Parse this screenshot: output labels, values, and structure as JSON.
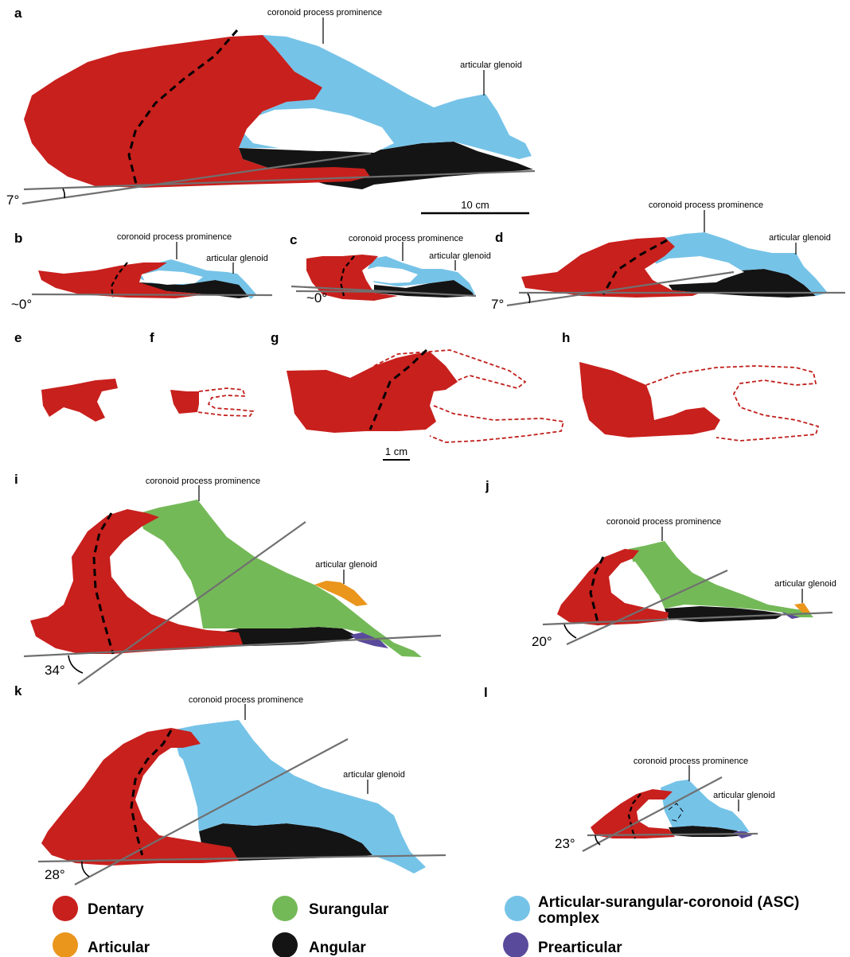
{
  "colors": {
    "dentary": "#c8201d",
    "surangular": "#74b958",
    "asc": "#76c3e8",
    "articular": "#ea951c",
    "angular": "#141414",
    "prearticular": "#5a4a9c",
    "reference_line": "#707070"
  },
  "annotations": {
    "coronoid": "coronoid process prominence",
    "glenoid": "articular glenoid"
  },
  "panels": {
    "a": {
      "label": "a",
      "angle": "7°"
    },
    "b": {
      "label": "b",
      "angle": "~0°"
    },
    "c": {
      "label": "c",
      "angle": "~0°"
    },
    "d": {
      "label": "d",
      "angle": "7°"
    },
    "e": {
      "label": "e"
    },
    "f": {
      "label": "f"
    },
    "g": {
      "label": "g"
    },
    "h": {
      "label": "h"
    },
    "i": {
      "label": "i",
      "angle": "34°"
    },
    "j": {
      "label": "j",
      "angle": "20°"
    },
    "k": {
      "label": "k",
      "angle": "28°"
    },
    "l": {
      "label": "l",
      "angle": "23°"
    }
  },
  "scale_bars": {
    "large": "10 cm",
    "small": "1 cm"
  },
  "legend": [
    {
      "label": "Dentary",
      "color": "#c8201d"
    },
    {
      "label": "Surangular",
      "color": "#74b958"
    },
    {
      "label": "Articular-surangular-coronoid (ASC)",
      "label_line2": "complex",
      "color": "#76c3e8"
    },
    {
      "label": "Articular",
      "color": "#ea951c"
    },
    {
      "label": "Angular",
      "color": "#141414"
    },
    {
      "label": "Prearticular",
      "color": "#5a4a9c"
    }
  ]
}
